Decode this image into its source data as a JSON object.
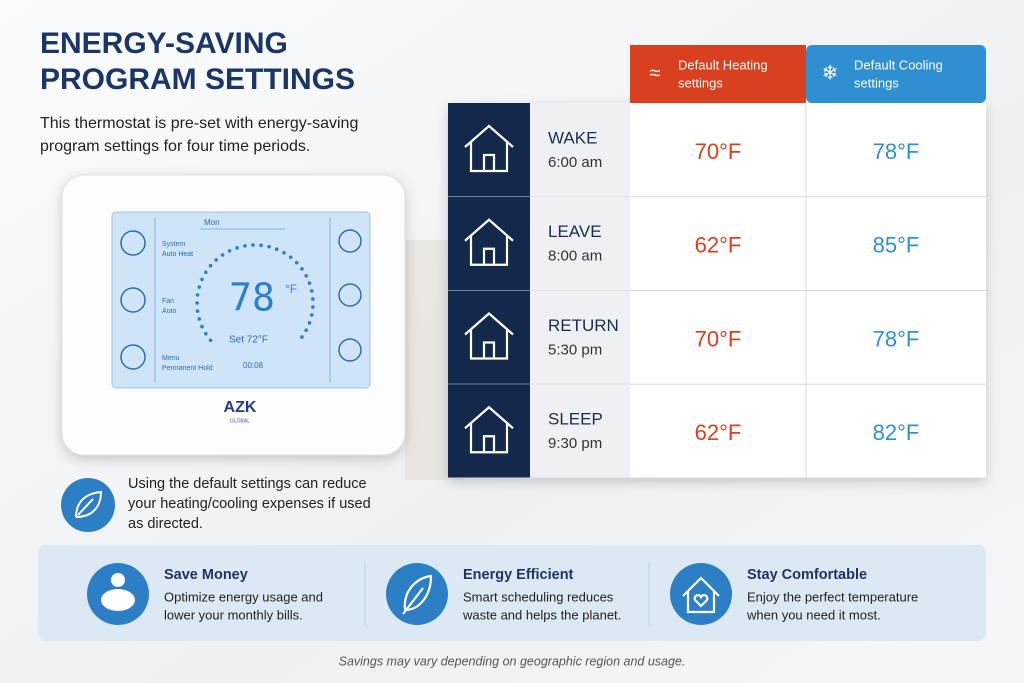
{
  "header": {
    "title_lines": [
      "ENERGY-SAVING",
      "PROGRAM SETTINGS"
    ],
    "subtitle_lines": [
      "This thermostat is pre-set with energy-saving",
      "program settings for four time periods."
    ]
  },
  "device": {
    "day": "Mon",
    "left_labels": [
      [
        "System",
        "Auto Heat"
      ],
      [
        "Fan",
        "Auto"
      ],
      [
        "Menu",
        "Permanent Hold"
      ]
    ],
    "temp": "78",
    "temp_unit": "°F",
    "set": "Set 72°F",
    "hold": "00:08",
    "brand": "AZK",
    "brand_sub": "GLOBAL"
  },
  "table": {
    "columns": [
      {
        "label_lines": [
          "Default Heating",
          "settings"
        ]
      },
      {
        "label_lines": [
          "Default Cooling",
          "settings"
        ]
      }
    ],
    "rows": [
      {
        "period": "WAKE",
        "time": "6:00 am",
        "heating": "70°F",
        "cooling": "78°F"
      },
      {
        "period": "LEAVE",
        "time": "8:00 am",
        "heating": "62°F",
        "cooling": "85°F"
      },
      {
        "period": "RETURN",
        "time": "5:30 pm",
        "heating": "70°F",
        "cooling": "78°F"
      },
      {
        "period": "SLEEP",
        "time": "9:30 pm",
        "heating": "62°F",
        "cooling": "82°F"
      }
    ]
  },
  "note": {
    "lines": [
      "Using the default settings can reduce",
      "your heating/cooling expenses if used",
      "as directed."
    ]
  },
  "benefits": [
    {
      "title": "Save Money",
      "lines": [
        "Optimize energy usage and",
        "lower your monthly bills."
      ]
    },
    {
      "title": "Energy Efficient",
      "lines": [
        "Smart scheduling reduces",
        "waste and helps the planet."
      ]
    },
    {
      "title": "Stay Comfortable",
      "lines": [
        "Enjoy the perfect temperature",
        "when you need it most."
      ]
    }
  ],
  "footer": "Savings may vary depending on geographic region and usage."
}
